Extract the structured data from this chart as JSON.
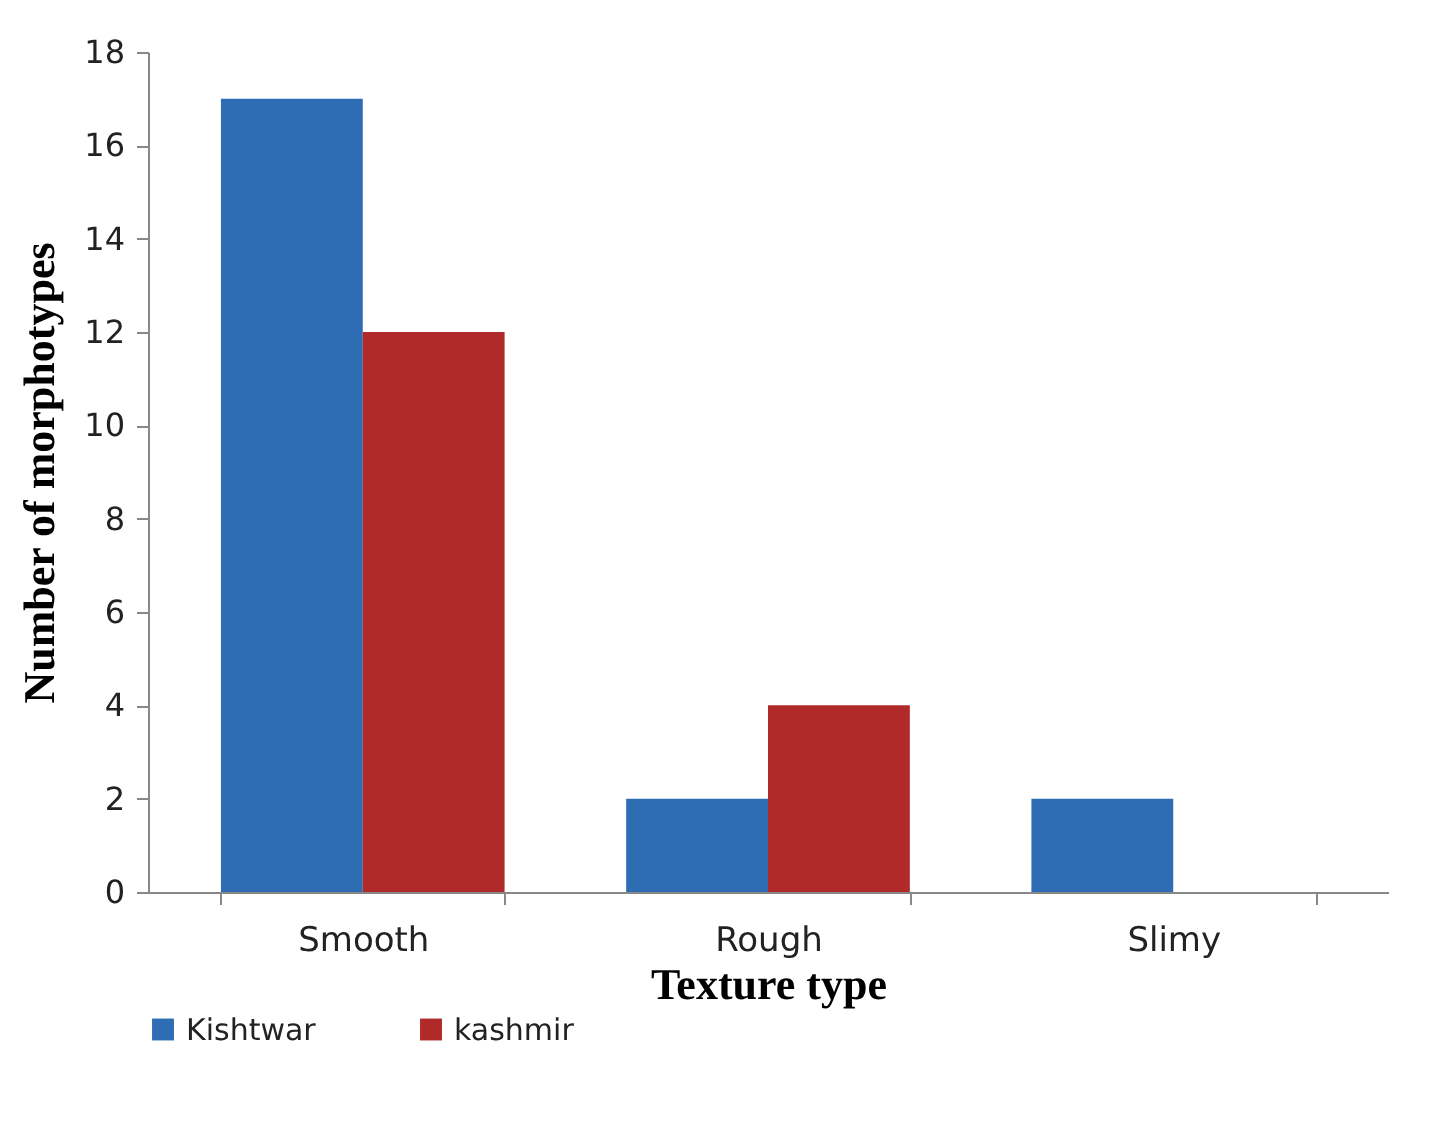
{
  "chart_data": {
    "type": "bar",
    "xlabel": "Texture type",
    "ylabel": "Number of morphotypes",
    "categories": [
      "Smooth",
      "Rough",
      "Slimy"
    ],
    "series": [
      {
        "name": "Kishtwar",
        "color": "#2e6db4",
        "values": [
          17,
          2,
          2
        ]
      },
      {
        "name": "kashmir",
        "color": "#b02a2a",
        "values": [
          12,
          4,
          0
        ]
      }
    ],
    "ylim": [
      0,
      18
    ],
    "yticks": [
      0,
      2,
      4,
      6,
      8,
      10,
      12,
      14,
      16,
      18
    ],
    "grid": false,
    "legend": "bottom"
  }
}
